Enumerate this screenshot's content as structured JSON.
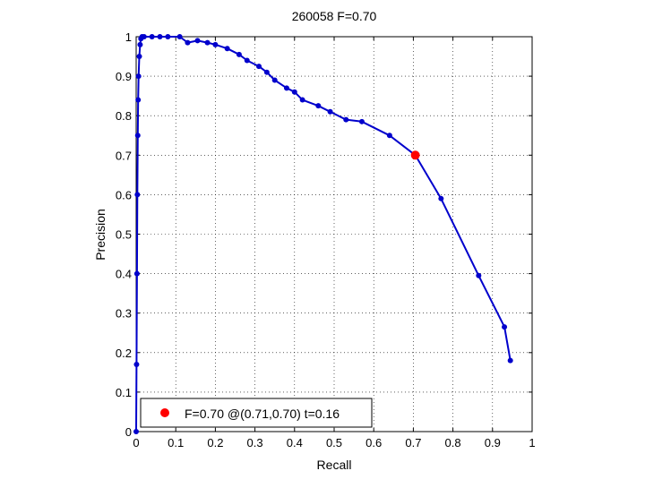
{
  "chart_data": {
    "type": "line",
    "title": "260058 F=0.70",
    "xlabel": "Recall",
    "ylabel": "Precision",
    "xlim": [
      0,
      1
    ],
    "ylim": [
      0,
      1
    ],
    "x_ticks": [
      "0",
      "0.1",
      "0.2",
      "0.3",
      "0.4",
      "0.5",
      "0.6",
      "0.7",
      "0.8",
      "0.9",
      "1"
    ],
    "y_ticks": [
      "0",
      "0.1",
      "0.2",
      "0.3",
      "0.4",
      "0.5",
      "0.6",
      "0.7",
      "0.8",
      "0.9",
      "1"
    ],
    "grid": true,
    "line_color": "#0000cc",
    "marker_color": "#0000cc",
    "highlight_color": "#ff0000",
    "series": [
      {
        "x": [
          0,
          0.001,
          0.002,
          0.003,
          0.004,
          0.005,
          0.006,
          0.008,
          0.01,
          0.012,
          0.015,
          0.02,
          0.04,
          0.06,
          0.08,
          0.11,
          0.13,
          0.155,
          0.18,
          0.2,
          0.23,
          0.26,
          0.28,
          0.31,
          0.33,
          0.35,
          0.38,
          0.4,
          0.42,
          0.46,
          0.49,
          0.53,
          0.57,
          0.64,
          0.705,
          0.77,
          0.865,
          0.93,
          0.945
        ],
        "y": [
          0,
          0.17,
          0.4,
          0.6,
          0.75,
          0.84,
          0.9,
          0.95,
          0.98,
          0.995,
          1.0,
          1.0,
          1.0,
          1.0,
          1.0,
          1.0,
          0.985,
          0.99,
          0.985,
          0.98,
          0.97,
          0.955,
          0.94,
          0.925,
          0.91,
          0.89,
          0.87,
          0.86,
          0.84,
          0.825,
          0.81,
          0.79,
          0.785,
          0.75,
          0.7,
          0.59,
          0.395,
          0.265,
          0.18
        ]
      }
    ],
    "highlight_point": {
      "x": 0.705,
      "y": 0.7
    },
    "legend": {
      "position": "bottom-left",
      "entries": [
        {
          "label": "F=0.70 @(0.71,0.70) t=0.16"
        }
      ]
    }
  }
}
